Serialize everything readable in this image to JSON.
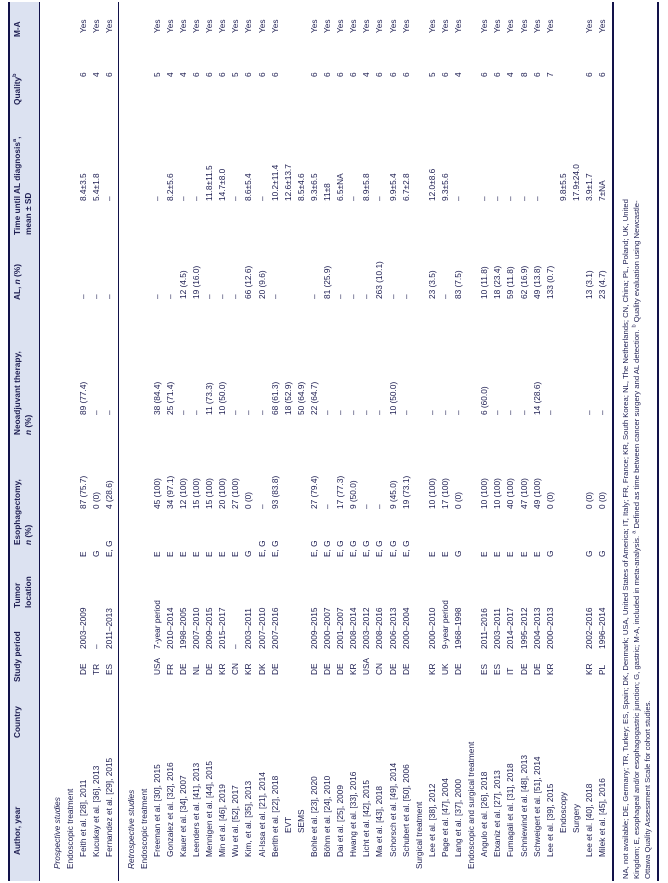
{
  "colors": {
    "text": "#1e1e52",
    "rule": "#12124a",
    "header_band": "#dce2f1",
    "background": "#ffffff"
  },
  "table": {
    "columns": [
      {
        "id": "author",
        "header": [
          [
            "Author, year"
          ]
        ]
      },
      {
        "id": "country",
        "header": [
          [
            "Country"
          ]
        ]
      },
      {
        "id": "period",
        "header": [
          [
            "Study period"
          ]
        ]
      },
      {
        "id": "tumor",
        "header": [
          [
            "Tumor"
          ],
          [
            "location"
          ]
        ]
      },
      {
        "id": "esoph",
        "header": [
          [
            "Esophagectomy,"
          ],
          [
            {
              "t": "n",
              "i": true
            },
            {
              "t": " (%)"
            }
          ]
        ]
      },
      {
        "id": "neo",
        "header": [
          [
            "Neoadjuvant therapy,"
          ],
          [
            {
              "t": "n",
              "i": true
            },
            {
              "t": " (%)"
            }
          ]
        ]
      },
      {
        "id": "al",
        "header": [
          [
            {
              "t": "AL, "
            },
            {
              "t": "n",
              "i": true
            },
            {
              "t": " (%)"
            }
          ]
        ]
      },
      {
        "id": "time",
        "header": [
          [
            {
              "t": "Time until AL diagnosis"
            },
            {
              "t": "a",
              "sup": true
            },
            {
              "t": ","
            }
          ],
          [
            "mean ± SD"
          ]
        ]
      },
      {
        "id": "quality",
        "header": [
          [
            {
              "t": "Quality"
            },
            {
              "t": "b",
              "sup": true
            }
          ]
        ]
      },
      {
        "id": "ma",
        "header": [
          [
            "M-A"
          ]
        ]
      }
    ],
    "rows": [
      {
        "style": "section",
        "label": "Prospective studies"
      },
      {
        "style": "group",
        "label": "Endoscopic treatment"
      },
      {
        "style": "study",
        "label": "Feith et al. [28], 2011",
        "country": "DE",
        "period": "2003–2009",
        "tumor": "E",
        "esoph": "87 (75.7)",
        "neo": "89 (77.4)",
        "al": "–",
        "time": "8.4±3.5",
        "quality": "6",
        "ma": "Yes"
      },
      {
        "style": "study",
        "label": "Kucukay et al. [36], 2013",
        "country": "TR",
        "period": "–",
        "tumor": "G",
        "esoph": "0 (0)",
        "neo": "–",
        "al": "–",
        "time": "5.4±1.8",
        "quality": "4",
        "ma": "Yes"
      },
      {
        "style": "study",
        "label": "Fernandez et al. [29], 2015",
        "country": "ES",
        "period": "2011–2013",
        "tumor": "E, G",
        "esoph": "4 (28.6)",
        "neo": "–",
        "al": "–",
        "time": "–",
        "quality": "6",
        "ma": "Yes"
      },
      {
        "style": "section",
        "label": "Retrospective studies",
        "rule_before": true
      },
      {
        "style": "group",
        "label": "Endoscopic treatment"
      },
      {
        "style": "study",
        "label": "Freeman et al. [30], 2015",
        "country": "USA",
        "period": "7-year period",
        "tumor": "E",
        "esoph": "45 (100)",
        "neo": "38 (84.4)",
        "al": "–",
        "time": "–",
        "quality": "5",
        "ma": "Yes"
      },
      {
        "style": "study",
        "label": "Gonzalez et al. [32], 2016",
        "country": "FR",
        "period": "2010–2014",
        "tumor": "E",
        "esoph": "34 (97.1)",
        "neo": "25 (71.4)",
        "al": "–",
        "time": "8.2±5.6",
        "quality": "4",
        "ma": "Yes"
      },
      {
        "style": "study",
        "label": "Kauer et al. [34], 2007",
        "country": "DE",
        "period": "1998–2005",
        "tumor": "E",
        "esoph": "12 (100)",
        "neo": "–",
        "al": "12 (4.5)",
        "time": "–",
        "quality": "4",
        "ma": "Yes"
      },
      {
        "style": "study",
        "label": "Leenders et al. [41], 2013",
        "country": "NL",
        "period": "2007–2010",
        "tumor": "E",
        "esoph": "15 (100)",
        "neo": "–",
        "al": "19 (16.0)",
        "time": "–",
        "quality": "6",
        "ma": "Yes"
      },
      {
        "style": "study",
        "label": "Mennigen et al. [44], 2015",
        "country": "DE",
        "period": "2009–2015",
        "tumor": "E",
        "esoph": "15 (100)",
        "neo": "11 (73.3)",
        "al": "–",
        "time": "11.8±11.5",
        "quality": "6",
        "ma": "Yes"
      },
      {
        "style": "study",
        "label": "Min et al. [46], 2019",
        "country": "KR",
        "period": "2015–2017",
        "tumor": "E",
        "esoph": "20 (100)",
        "neo": "10 (50.0)",
        "al": "–",
        "time": "14.7±8.0",
        "quality": "6",
        "ma": "Yes"
      },
      {
        "style": "study",
        "label": "Wu et al. [52], 2017",
        "country": "CN",
        "period": "–",
        "tumor": "E",
        "esoph": "27 (100)",
        "neo": "–",
        "al": "–",
        "time": "–",
        "quality": "5",
        "ma": "Yes"
      },
      {
        "style": "study",
        "label": "Kim, et al. [35], 2013",
        "country": "KR",
        "period": "2003–2011",
        "tumor": "G",
        "esoph": "0 (0)",
        "neo": "–",
        "al": "66 (12.6)",
        "time": "8.6±5.4",
        "quality": "6",
        "ma": "Yes"
      },
      {
        "style": "study",
        "label": "Al-Issa et al. [21], 2014",
        "country": "DK",
        "period": "2007–2010",
        "tumor": "E, G",
        "esoph": "–",
        "neo": "–",
        "al": "20 (9.6)",
        "time": "–",
        "quality": "6",
        "ma": "Yes"
      },
      {
        "style": "study",
        "label": "Berlth et al. [22], 2018",
        "country": "DE",
        "period": "2007–2016",
        "tumor": "E, G",
        "esoph": "93 (83.8)",
        "neo": "68 (61.3)",
        "al": "–",
        "time": "10.2±11.4",
        "quality": "6",
        "ma": "Yes"
      },
      {
        "style": "sub",
        "label": "EVT",
        "neo": "18 (52.9)",
        "time": "12.6±13.7"
      },
      {
        "style": "sub",
        "label": "SEMS",
        "neo": "50 (64.9)",
        "time": "8.5±4.6"
      },
      {
        "style": "study",
        "label": "Bohle et al. [23], 2020",
        "country": "DE",
        "period": "2009–2015",
        "tumor": "E, G",
        "esoph": "27 (79.4)",
        "neo": "22 (64.7)",
        "al": "–",
        "time": "9.3±6.5",
        "quality": "6",
        "ma": "Yes"
      },
      {
        "style": "study",
        "label": "Böhm et al. [24], 2010",
        "country": "DE",
        "period": "2000–2007",
        "tumor": "E, G",
        "esoph": "–",
        "neo": "–",
        "al": "81 (25.9)",
        "time": "11±8",
        "quality": "6",
        "ma": "Yes"
      },
      {
        "style": "study",
        "label": "Dai et al. [25], 2009",
        "country": "DE",
        "period": "2001–2007",
        "tumor": "E, G",
        "esoph": "17 (77.3)",
        "neo": "–",
        "al": "–",
        "time": "6.5±NA",
        "quality": "6",
        "ma": "Yes"
      },
      {
        "style": "study",
        "label": "Hwang et al. [33], 2016",
        "country": "KR",
        "period": "2008–2014",
        "tumor": "E, G",
        "esoph": "9 (50.0)",
        "neo": "–",
        "al": "–",
        "time": "–",
        "quality": "6",
        "ma": "Yes"
      },
      {
        "style": "study",
        "label": "Licht et al. [42], 2015",
        "country": "USA",
        "period": "2003–2012",
        "tumor": "E, G",
        "esoph": "–",
        "neo": "–",
        "al": "–",
        "time": "8.9±5.8",
        "quality": "4",
        "ma": "Yes"
      },
      {
        "style": "study",
        "label": "Ma et al. [43], 2018",
        "country": "CN",
        "period": "2008–2016",
        "tumor": "E, G",
        "esoph": "–",
        "neo": "–",
        "al": "263 (10.1)",
        "time": "–",
        "quality": "6",
        "ma": "Yes"
      },
      {
        "style": "study",
        "label": "Schorsch et al. [49], 2014",
        "country": "DE",
        "period": "2006–2013",
        "tumor": "E, G",
        "esoph": "9 (45.0)",
        "neo": "10 (50.0)",
        "al": "–",
        "time": "9.9±5.4",
        "quality": "6",
        "ma": "Yes"
      },
      {
        "style": "study",
        "label": "Schubert et al. [50], 2006",
        "country": "DE",
        "period": "2000–2004",
        "tumor": "E, G",
        "esoph": "19 (73.1)",
        "neo": "–",
        "al": "–",
        "time": "6.7±2.8",
        "quality": "6",
        "ma": "Yes"
      },
      {
        "style": "group",
        "label": "Surgical treatment"
      },
      {
        "style": "study",
        "label": "Lee et al. [38], 2012",
        "country": "KR",
        "period": "2000–2010",
        "tumor": "E",
        "esoph": "10 (100)",
        "neo": "–",
        "al": "23 (3.5)",
        "time": "12.0±8.6",
        "quality": "5",
        "ma": "Yes"
      },
      {
        "style": "study",
        "label": "Page et al. [47], 2004",
        "country": "UK",
        "period": "9-year period",
        "tumor": "E",
        "esoph": "17 (100)",
        "neo": "–",
        "al": "–",
        "time": "9.3±5.6",
        "quality": "6",
        "ma": "Yes"
      },
      {
        "style": "study",
        "label": "Lang et al. [37], 2000",
        "country": "DE",
        "period": "1968–1998",
        "tumor": "G",
        "esoph": "0 (0)",
        "neo": "–",
        "al": "83 (7.5)",
        "time": "–",
        "quality": "4",
        "ma": "Yes"
      },
      {
        "style": "group",
        "label": "Endoscopic and surgical treatment"
      },
      {
        "style": "study",
        "label": "Angulo et al. [26], 2018",
        "country": "ES",
        "period": "2011–2016",
        "tumor": "E",
        "esoph": "10 (100)",
        "neo": "6 (60.0)",
        "al": "10 (11.8)",
        "time": "–",
        "quality": "6",
        "ma": "Yes"
      },
      {
        "style": "study",
        "label": "Etxaniz et al. [27], 2013",
        "country": "ES",
        "period": "2003–2011",
        "tumor": "E",
        "esoph": "10 (100)",
        "neo": "–",
        "al": "18 (23.4)",
        "time": "–",
        "quality": "6",
        "ma": "Yes"
      },
      {
        "style": "study",
        "label": "Fumagali et al. [31], 2018",
        "country": "IT",
        "period": "2014–2017",
        "tumor": "E",
        "esoph": "40 (100)",
        "neo": "–",
        "al": "59 (11.8)",
        "time": "–",
        "quality": "4",
        "ma": "Yes"
      },
      {
        "style": "study",
        "label": "Schniewind et al. [48], 2013",
        "country": "DE",
        "period": "1995–2012",
        "tumor": "E",
        "esoph": "47 (100)",
        "neo": "–",
        "al": "62 (16.9)",
        "time": "–",
        "quality": "8",
        "ma": "Yes"
      },
      {
        "style": "study",
        "label": "Schweigert et al. [51], 2014",
        "country": "DE",
        "period": "2004–2013",
        "tumor": "E",
        "esoph": "49 (100)",
        "neo": "14 (28.6)",
        "al": "49 (13.8)",
        "time": "–",
        "quality": "6",
        "ma": "Yes"
      },
      {
        "style": "study",
        "label": "Lee et al. [39], 2015",
        "country": "KR",
        "period": "2000–2013",
        "tumor": "G",
        "esoph": "0 (0)",
        "neo": "–",
        "al": "133 (0.7)",
        "quality": "7",
        "ma": "Yes"
      },
      {
        "style": "sub",
        "label": "Endoscopy",
        "time": "9.8±5.5"
      },
      {
        "style": "sub",
        "label": "Surgery",
        "time": "17.9±24.0"
      },
      {
        "style": "study",
        "label": "Lee et al. [40], 2018",
        "country": "KR",
        "period": "2002–2016",
        "tumor": "G",
        "esoph": "0 (0)",
        "neo": "–",
        "al": "13 (3.1)",
        "time": "3.9±1.7",
        "quality": "6",
        "ma": "Yes"
      },
      {
        "style": "study",
        "label": "Milek et al. [45], 2016",
        "country": "PL",
        "period": "1996–2014",
        "tumor": "G",
        "esoph": "0 (0)",
        "neo": "–",
        "al": "23 (4.7)",
        "time": "7±NA",
        "quality": "6",
        "ma": "Yes"
      }
    ]
  },
  "footnote": {
    "lines": [
      [
        {
          "t": "NA, not available; DE, Germany; TR, Turkey; ES, Spain; DK, Denmark; USA, United States of America; IT, Italy; FR, France; KR, South Korea; NL, The Netherlands; CN, China; PL, Poland; UK, United"
        }
      ],
      [
        {
          "t": "Kingdom; E, esophageal and/or esophagogastric junction; G, gastric; M-A, included in meta-analysis. "
        },
        {
          "t": "a",
          "sup": true
        },
        {
          "t": " Defined as time between cancer surgery and AL detection. "
        },
        {
          "t": "b",
          "sup": true
        },
        {
          "t": " Quality evaluation using Newcastle-"
        }
      ],
      [
        {
          "t": "Ottawa Quality Assessment Scale for cohort studies."
        }
      ]
    ]
  }
}
